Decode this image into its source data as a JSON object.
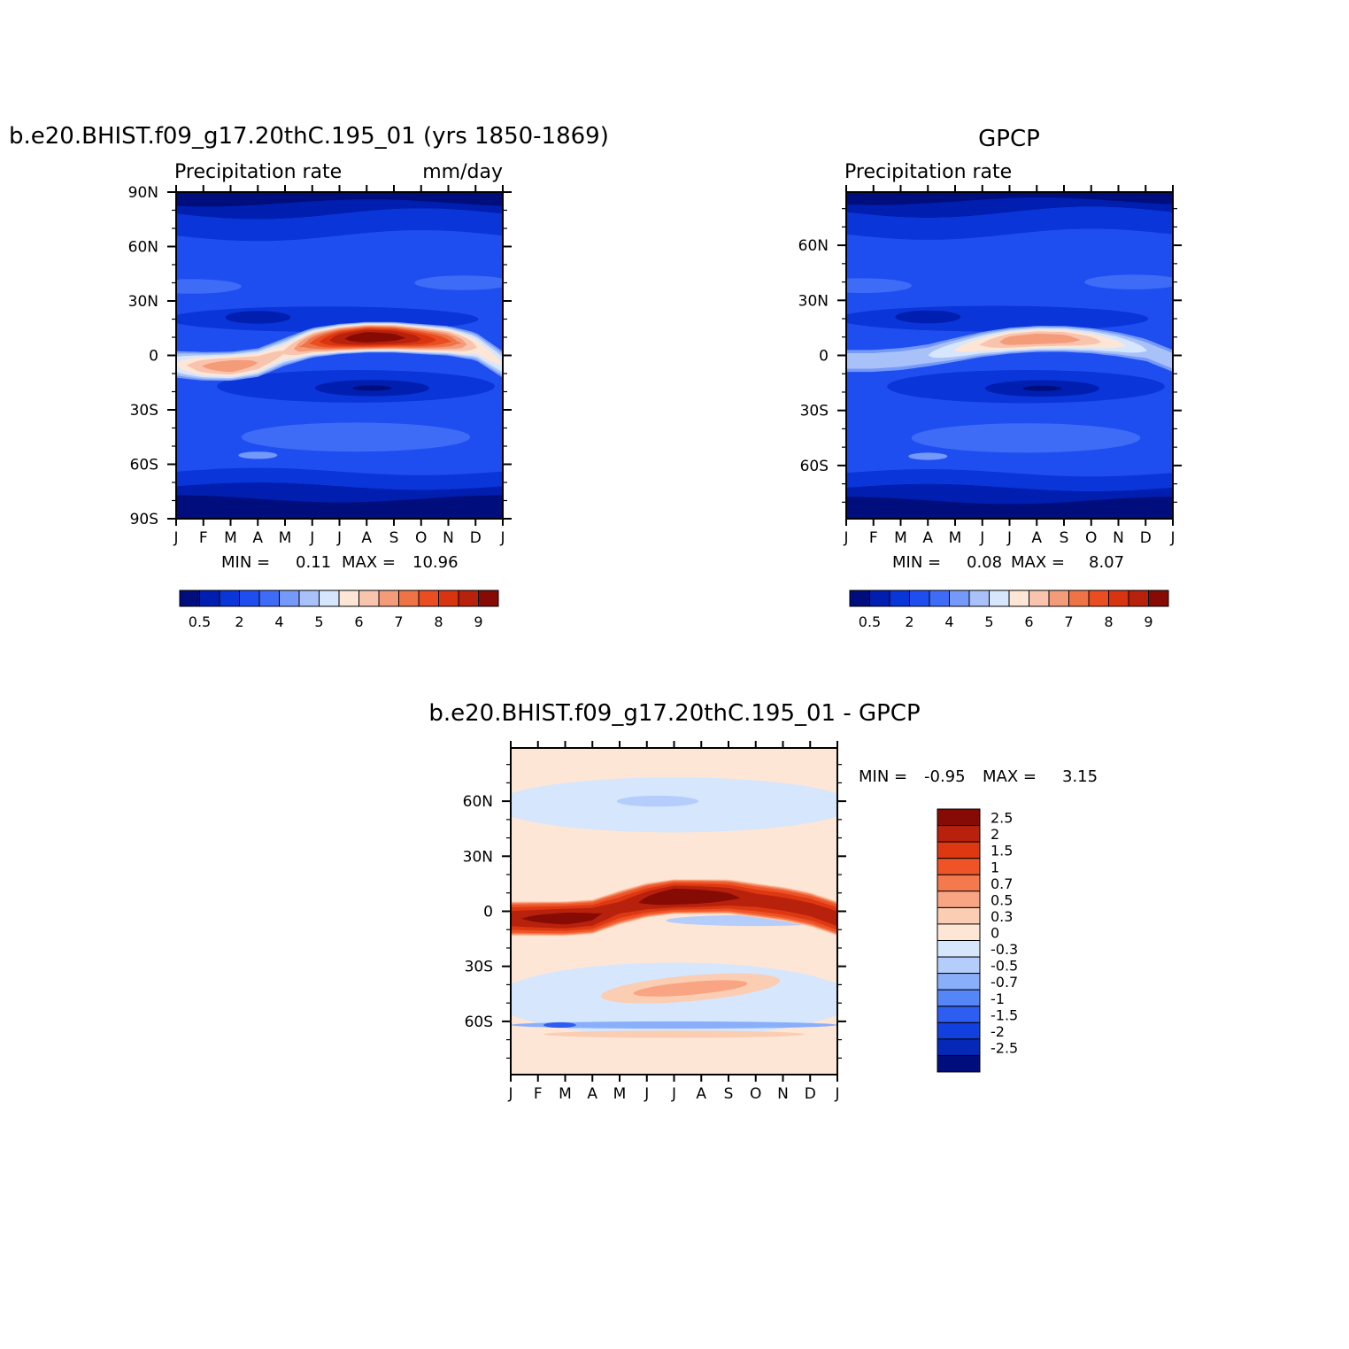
{
  "colors": {
    "full": [
      "#000e7d",
      "#001fb0",
      "#0a35d8",
      "#1f4ef0",
      "#3e6cf7",
      "#7599f9",
      "#a9c1f9",
      "#d6e6fd",
      "#fde6d6",
      "#f9c4ae",
      "#f49c7a",
      "#ee7448",
      "#ea4d1f",
      "#d93410",
      "#b8210b",
      "#870b05"
    ],
    "diff": [
      "#870b05",
      "#b8210b",
      "#dd3812",
      "#ee5428",
      "#f4794c",
      "#f9a583",
      "#fbcdb2",
      "#fde6d6",
      "#d6e6fd",
      "#b4cdfb",
      "#89aefa",
      "#5585f6",
      "#2d5df1",
      "#1140de",
      "#0628b8",
      "#000e7d"
    ]
  },
  "months": [
    "J",
    "F",
    "M",
    "A",
    "M",
    "J",
    "J",
    "A",
    "S",
    "O",
    "N",
    "D",
    "J"
  ],
  "panels": [
    {
      "id": "model",
      "title": "b.e20.BHIST.f09_g17.20thC.195_01 (yrs 1850-1869)",
      "left_label": "Precipitation rate",
      "right_label": "mm/day",
      "lat_labels": [
        "90N",
        "60N",
        "30N",
        "0",
        "30S",
        "60S",
        "90S"
      ],
      "stats": {
        "min_label": "MIN =",
        "min": "0.11",
        "max_label": "MAX =",
        "max": "10.96"
      },
      "colorbar_labels": [
        "0.5",
        "2",
        "4",
        "5",
        "6",
        "7",
        "8",
        "9"
      ]
    },
    {
      "id": "obs",
      "title": "GPCP",
      "left_label": "Precipitation rate",
      "right_label": "",
      "lat_labels": [
        "60N",
        "30N",
        "0",
        "30S",
        "60S"
      ],
      "stats": {
        "min_label": "MIN =",
        "min": "0.08",
        "max_label": "MAX =",
        "max": "8.07"
      },
      "colorbar_labels": [
        "0.5",
        "2",
        "4",
        "5",
        "6",
        "7",
        "8",
        "9"
      ]
    },
    {
      "id": "diff",
      "title": "b.e20.BHIST.f09_g17.20thC.195_01 - GPCP",
      "left_label": "",
      "right_label": "",
      "lat_labels": [
        "60N",
        "30N",
        "0",
        "30S",
        "60S"
      ],
      "stats": {
        "min_label": "MIN =",
        "min": "-0.95",
        "max_label": "MAX =",
        "max": "3.15"
      },
      "colorbar_labels": [
        "2.5",
        "2",
        "1.5",
        "1",
        "0.7",
        "0.5",
        "0.3",
        "0",
        "-0.3",
        "-0.5",
        "-0.7",
        "-1",
        "-1.5",
        "-2",
        "-2.5"
      ]
    }
  ],
  "chart_data": [
    {
      "type": "heatmap",
      "title": "b.e20.BHIST.f09_g17.20thC.195_01 (yrs 1850-1869)",
      "variable": "Precipitation rate",
      "units": "mm/day",
      "x": [
        "J",
        "F",
        "M",
        "A",
        "M",
        "J",
        "J",
        "A",
        "S",
        "O",
        "N",
        "D",
        "J"
      ],
      "y_range": [
        -90,
        90
      ],
      "levels": [
        0.5,
        1,
        2,
        3,
        4,
        4.5,
        5,
        5.5,
        6,
        6.5,
        7,
        7.5,
        8,
        8.5,
        9
      ],
      "min": 0.11,
      "max": 10.96,
      "itcz_lat": [
        -5,
        -6,
        -6,
        -4,
        2,
        7,
        9,
        10,
        10,
        9,
        8,
        5,
        -5
      ],
      "itcz_peak": [
        6.5,
        7.5,
        8,
        7.5,
        7,
        8.5,
        10,
        10.9,
        10.5,
        9.5,
        8.5,
        7,
        6.5
      ]
    },
    {
      "type": "heatmap",
      "title": "GPCP",
      "variable": "Precipitation rate",
      "x": [
        "J",
        "F",
        "M",
        "A",
        "M",
        "J",
        "J",
        "A",
        "S",
        "O",
        "N",
        "D",
        "J"
      ],
      "y_range": [
        -90,
        90
      ],
      "levels": [
        0.5,
        1,
        2,
        3,
        4,
        4.5,
        5,
        5.5,
        6,
        6.5,
        7,
        7.5,
        8,
        8.5,
        9
      ],
      "min": 0.08,
      "max": 8.07,
      "itcz_lat": [
        -3,
        -3,
        -2,
        0,
        3,
        6,
        8,
        9,
        9,
        8,
        6,
        3,
        -3
      ],
      "itcz_peak": [
        6,
        6,
        6,
        6,
        6.5,
        7,
        7.8,
        8,
        7.8,
        7.2,
        6.6,
        6,
        6
      ]
    },
    {
      "type": "heatmap",
      "title": "b.e20.BHIST.f09_g17.20thC.195_01 - GPCP",
      "x": [
        "J",
        "F",
        "M",
        "A",
        "M",
        "J",
        "J",
        "A",
        "S",
        "O",
        "N",
        "D",
        "J"
      ],
      "y_range": [
        -90,
        90
      ],
      "levels": [
        -2.5,
        -2,
        -1.5,
        -1,
        -0.7,
        -0.5,
        -0.3,
        0,
        0.3,
        0.5,
        0.7,
        1,
        1.5,
        2,
        2.5
      ],
      "min": -0.95,
      "max": 3.15
    }
  ]
}
